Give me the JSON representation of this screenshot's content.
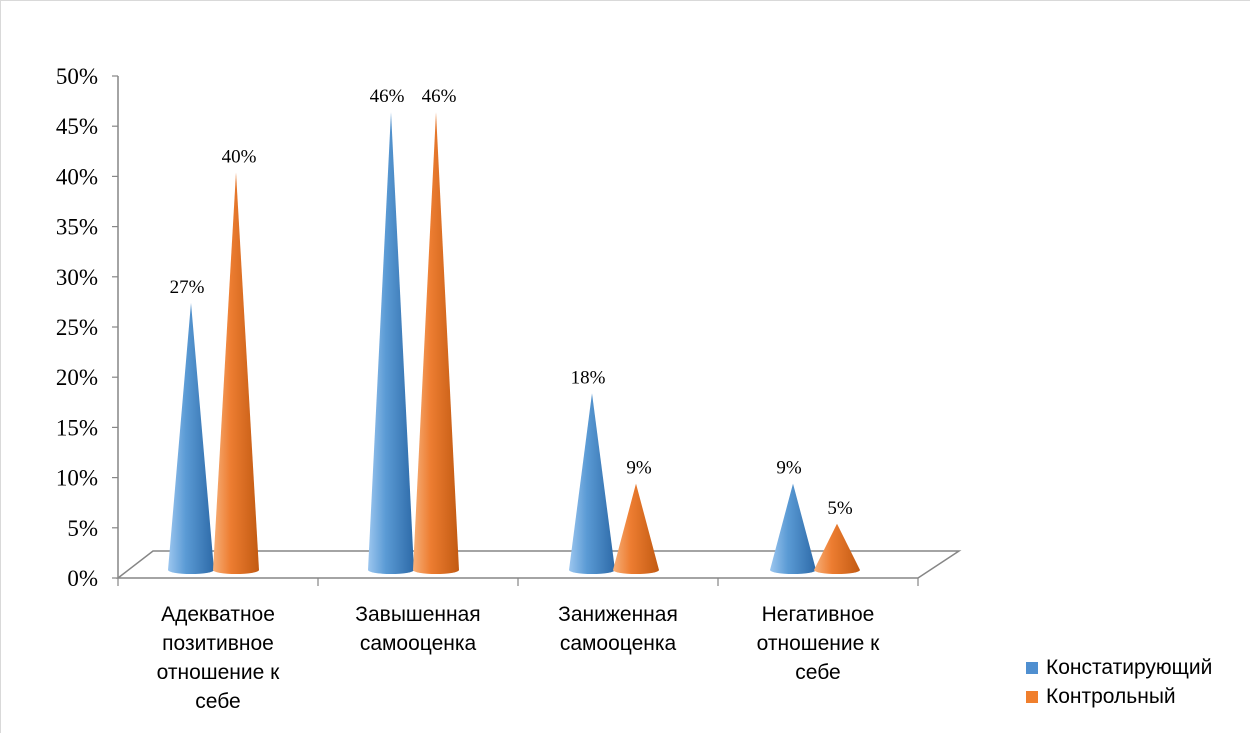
{
  "chart_data": {
    "type": "bar",
    "shape": "cone",
    "categories": [
      [
        "Адекватное",
        "позитивное",
        "отношение к",
        "себе"
      ],
      [
        "Завышенная",
        "самооценка"
      ],
      [
        "Заниженная",
        "самооценка"
      ],
      [
        "Негативное",
        "отношение к",
        "себе"
      ]
    ],
    "series": [
      {
        "name": "Констатирующий",
        "color": "#4f8fd0",
        "values": [
          27,
          46,
          18,
          9
        ],
        "labels": [
          "27%",
          "46%",
          "18%",
          "9%"
        ]
      },
      {
        "name": "Контрольный",
        "color": "#f07f2d",
        "values": [
          40,
          46,
          9,
          5
        ],
        "labels": [
          "40%",
          "46%",
          "9%",
          "5%"
        ]
      }
    ],
    "y_ticks": [
      "0%",
      "5%",
      "10%",
      "15%",
      "20%",
      "25%",
      "30%",
      "35%",
      "40%",
      "45%",
      "50%"
    ],
    "ylim": [
      0,
      50
    ],
    "ystep": 5,
    "grid": false,
    "legend_position": "bottom-right"
  }
}
